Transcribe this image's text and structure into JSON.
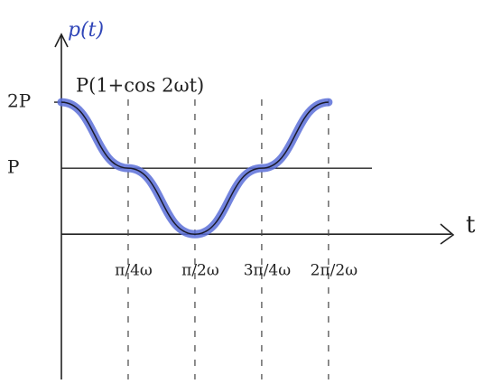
{
  "chart_data": {
    "type": "line",
    "title": "p(t)",
    "annotation": "P(1+cos 2ωt)",
    "x_label": "t",
    "x": [
      0,
      0.25,
      0.5,
      0.75,
      1
    ],
    "series": [
      {
        "name": "P(1+cos 2ωt)",
        "color": "#5b6fd8",
        "values": [
          2,
          1,
          0,
          1,
          2
        ]
      }
    ],
    "xlim": [
      0,
      1.46
    ],
    "ylim": [
      -2.2,
      3
    ],
    "xticks": [
      {
        "value": 0.25,
        "label": "π/4ω"
      },
      {
        "value": 0.5,
        "label": "π/2ω"
      },
      {
        "value": 0.75,
        "label": "3π/4ω"
      },
      {
        "value": 1,
        "label": "2π/2ω"
      }
    ],
    "yticks": [
      {
        "value": 2,
        "label": "2P"
      },
      {
        "value": 1,
        "label": "P"
      }
    ]
  }
}
